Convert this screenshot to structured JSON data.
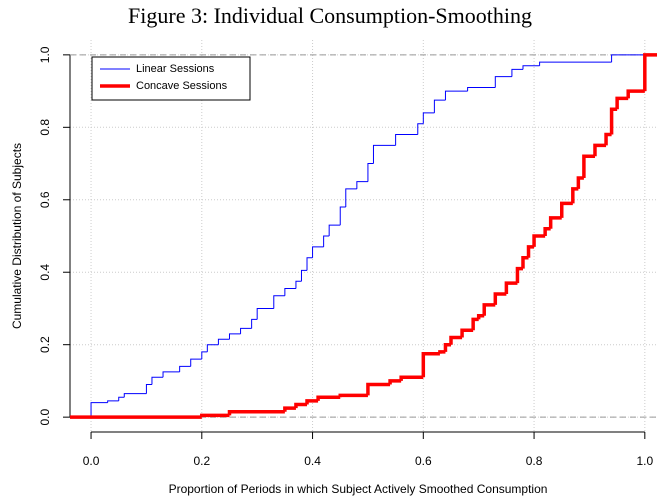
{
  "chart_data": {
    "type": "step",
    "title": "Figure 3: Individual Consumption-Smoothing",
    "xlabel": "Proportion of Periods in which Subject Actively Smoothed Consumption",
    "ylabel": "Cumulative Distribution of Subjects",
    "xlim": [
      -0.038,
      1.022
    ],
    "ylim": [
      -0.041,
      1.041
    ],
    "xticks": [
      {
        "value": 0,
        "label": "0.0"
      },
      0.2,
      0.4,
      0.6,
      0.8,
      {
        "value": 1,
        "label": "1.0"
      }
    ],
    "yticks": [
      {
        "value": 0,
        "label": "0.0"
      },
      0.2,
      0.4,
      0.6,
      0.8,
      {
        "value": 1,
        "label": "1.0"
      }
    ],
    "grid": true,
    "hlines": [
      0,
      1
    ],
    "legend": "top-left",
    "series": [
      {
        "name": "Linear Sessions",
        "color": "#0000ff",
        "width": 1,
        "x": [
          -0.038,
          0,
          0.03,
          0.05,
          0.06,
          0.1,
          0.11,
          0.13,
          0.16,
          0.18,
          0.2,
          0.21,
          0.23,
          0.25,
          0.27,
          0.29,
          0.3,
          0.33,
          0.35,
          0.37,
          0.38,
          0.39,
          0.4,
          0.42,
          0.43,
          0.45,
          0.46,
          0.48,
          0.5,
          0.51,
          0.55,
          0.59,
          0.6,
          0.62,
          0.64,
          0.68,
          0.73,
          0.76,
          0.78,
          0.81,
          0.94
        ],
        "values": [
          0,
          0.04,
          0.045,
          0.055,
          0.065,
          0.09,
          0.11,
          0.125,
          0.14,
          0.16,
          0.18,
          0.2,
          0.215,
          0.23,
          0.245,
          0.27,
          0.3,
          0.335,
          0.355,
          0.375,
          0.405,
          0.44,
          0.47,
          0.5,
          0.53,
          0.58,
          0.63,
          0.65,
          0.7,
          0.75,
          0.78,
          0.81,
          0.84,
          0.875,
          0.9,
          0.91,
          0.94,
          0.96,
          0.97,
          0.98,
          1
        ]
      },
      {
        "name": "Concave Sessions",
        "color": "#ff0000",
        "width": 3.5,
        "x": [
          -0.038,
          0.2,
          0.25,
          0.35,
          0.37,
          0.39,
          0.41,
          0.45,
          0.5,
          0.54,
          0.56,
          0.6,
          0.63,
          0.64,
          0.65,
          0.67,
          0.69,
          0.7,
          0.71,
          0.73,
          0.75,
          0.77,
          0.78,
          0.79,
          0.8,
          0.82,
          0.83,
          0.85,
          0.87,
          0.88,
          0.89,
          0.91,
          0.93,
          0.94,
          0.95,
          0.97,
          1
        ],
        "values": [
          0,
          0.005,
          0.015,
          0.025,
          0.035,
          0.045,
          0.055,
          0.06,
          0.09,
          0.1,
          0.11,
          0.175,
          0.18,
          0.2,
          0.22,
          0.24,
          0.27,
          0.28,
          0.31,
          0.34,
          0.37,
          0.41,
          0.44,
          0.47,
          0.5,
          0.52,
          0.55,
          0.59,
          0.63,
          0.66,
          0.72,
          0.75,
          0.78,
          0.85,
          0.88,
          0.9,
          1
        ]
      }
    ]
  }
}
